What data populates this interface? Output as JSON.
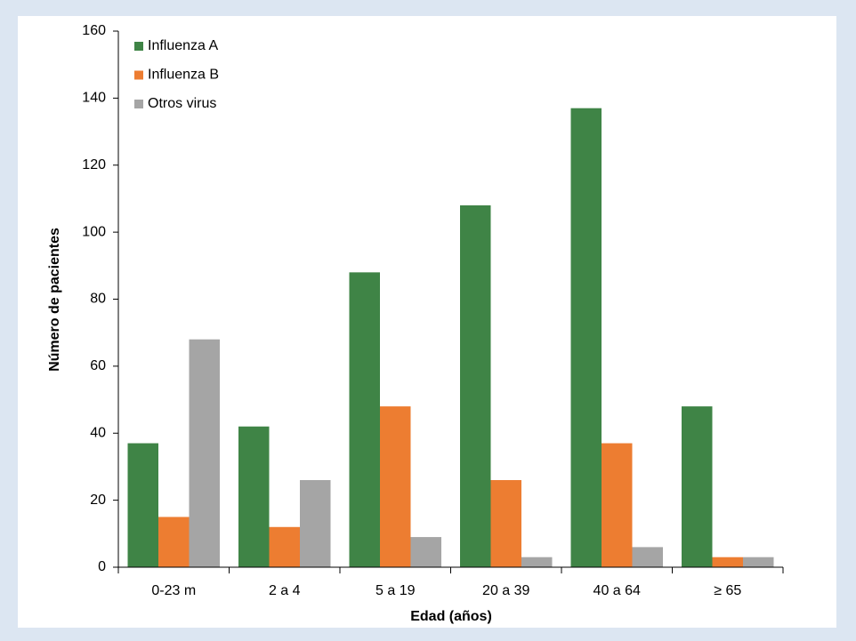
{
  "chart_data": {
    "type": "bar",
    "x_label": "Edad (años)",
    "y_label": "Número de pacientes",
    "categories": [
      "0-23 m",
      "2 a 4",
      "5 a 19",
      "20 a 39",
      "40 a 64",
      "≥ 65"
    ],
    "series": [
      {
        "name": "Influenza A",
        "color": "#3f8446",
        "values": [
          37,
          42,
          88,
          108,
          137,
          48
        ]
      },
      {
        "name": "Influenza B",
        "color": "#ed7d31",
        "values": [
          15,
          12,
          48,
          26,
          37,
          3
        ]
      },
      {
        "name": "Otros virus",
        "color": "#a5a5a5",
        "values": [
          68,
          26,
          9,
          3,
          6,
          3
        ]
      }
    ],
    "ylim": [
      0,
      160
    ],
    "yticks": [
      0,
      20,
      40,
      60,
      80,
      100,
      120,
      140,
      160
    ],
    "grid": false,
    "legend": "top-left"
  }
}
